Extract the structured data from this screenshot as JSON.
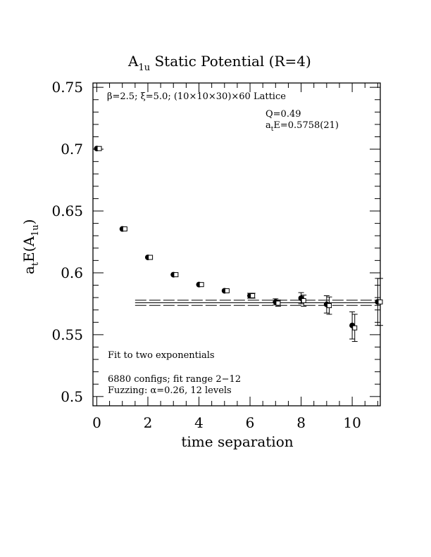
{
  "chart_data": {
    "type": "scatter",
    "title_main": "A",
    "title_sub": "1u",
    "title_rest": " Static Potential (R=4)",
    "xlabel": "time separation",
    "ylabel_main": "a",
    "ylabel_sub1": "t",
    "ylabel_mid": "E(A",
    "ylabel_sub2": "1u",
    "ylabel_end": ")",
    "xlim": [
      -0.15,
      11.1
    ],
    "ylim": [
      0.4925,
      0.7535
    ],
    "x_ticks": [
      0,
      2,
      4,
      6,
      8,
      10
    ],
    "x_tick_labels": [
      "0",
      "2",
      "4",
      "6",
      "8",
      "10"
    ],
    "y_ticks": [
      0.5,
      0.55,
      0.6,
      0.65,
      0.7,
      0.75
    ],
    "y_tick_labels": [
      "0.5",
      "0.55",
      "0.6",
      "0.65",
      "0.7",
      "0.75"
    ],
    "annotations": {
      "lattice": "β=2.5; ξ=5.0; (10×10×30)×60 Lattice",
      "q": "Q=0.49",
      "fit_pre": "a",
      "fit_sub": "t",
      "fit_post": "E=0.5758(21)",
      "fit_type": "Fit to two exponentials",
      "configs": "6880 configs; fit range 2−12",
      "fuzzing": "Fuzzing: α=0.26, 12 levels"
    },
    "fit": {
      "value": 0.5758,
      "error": 0.0021,
      "x_range": [
        1.5,
        11.1
      ]
    },
    "series": [
      {
        "marker": "filled-circle",
        "points": [
          {
            "x": 0,
            "y": 0.7005,
            "err": 0.0006
          },
          {
            "x": 1,
            "y": 0.6355,
            "err": 0.0008
          },
          {
            "x": 2,
            "y": 0.6125,
            "err": 0.0008
          },
          {
            "x": 3,
            "y": 0.5985,
            "err": 0.001
          },
          {
            "x": 4,
            "y": 0.5905,
            "err": 0.0012
          },
          {
            "x": 5,
            "y": 0.5855,
            "err": 0.0015
          },
          {
            "x": 6,
            "y": 0.5815,
            "err": 0.002
          },
          {
            "x": 7,
            "y": 0.5765,
            "err": 0.0025
          },
          {
            "x": 8,
            "y": 0.5795,
            "err": 0.0045
          },
          {
            "x": 9,
            "y": 0.5745,
            "err": 0.007
          },
          {
            "x": 10,
            "y": 0.5575,
            "err": 0.011
          },
          {
            "x": 11,
            "y": 0.5765,
            "err": 0.019
          }
        ]
      },
      {
        "marker": "open-square",
        "points": [
          {
            "x": 0.1,
            "y": 0.7005,
            "err": 0.0006
          },
          {
            "x": 1.1,
            "y": 0.6355,
            "err": 0.0008
          },
          {
            "x": 2.1,
            "y": 0.6125,
            "err": 0.0008
          },
          {
            "x": 3.1,
            "y": 0.5985,
            "err": 0.001
          },
          {
            "x": 4.1,
            "y": 0.5905,
            "err": 0.0012
          },
          {
            "x": 5.1,
            "y": 0.5855,
            "err": 0.0015
          },
          {
            "x": 6.1,
            "y": 0.5815,
            "err": 0.002
          },
          {
            "x": 7.1,
            "y": 0.5755,
            "err": 0.0025
          },
          {
            "x": 8.1,
            "y": 0.5775,
            "err": 0.0045
          },
          {
            "x": 9.1,
            "y": 0.5735,
            "err": 0.007
          },
          {
            "x": 10.1,
            "y": 0.5555,
            "err": 0.011
          },
          {
            "x": 11.1,
            "y": 0.5765,
            "err": 0.019
          }
        ]
      }
    ]
  }
}
